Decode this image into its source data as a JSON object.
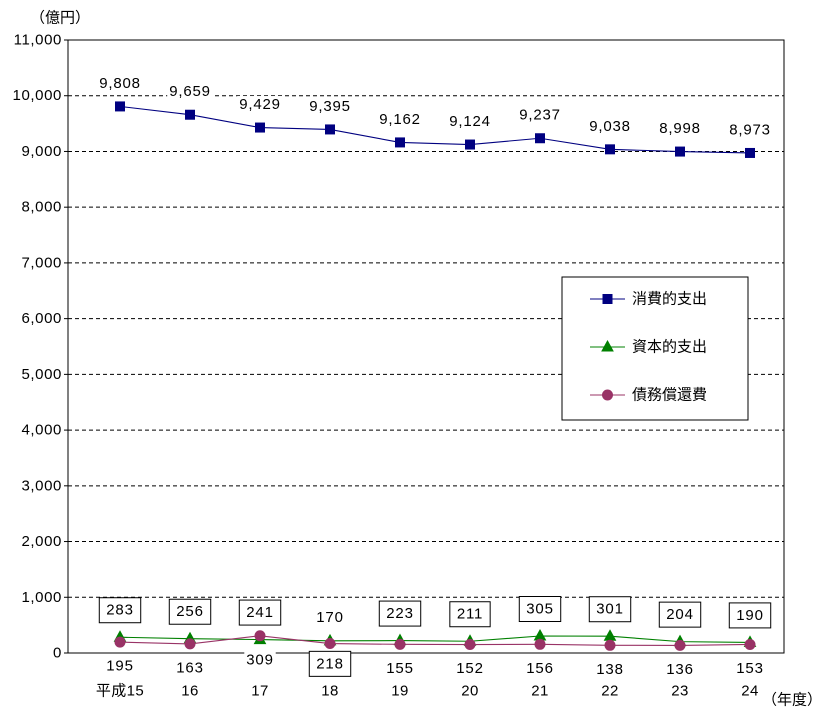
{
  "chart_data": {
    "type": "line",
    "ylabel": "（億円）",
    "xlabel": "（年度）",
    "categories": [
      "平成15",
      "16",
      "17",
      "18",
      "19",
      "20",
      "21",
      "22",
      "23",
      "24"
    ],
    "ylim": [
      0,
      11000
    ],
    "y_ticks": [
      0,
      1000,
      2000,
      3000,
      4000,
      5000,
      6000,
      7000,
      8000,
      9000,
      10000,
      11000
    ],
    "grid": true,
    "legend_position": "right",
    "series": [
      {
        "name": "消費的支出",
        "values": [
          9808,
          9659,
          9429,
          9395,
          9162,
          9124,
          9237,
          9038,
          8998,
          8973
        ],
        "color": "#000080",
        "marker": "square"
      },
      {
        "name": "資本的支出",
        "values": [
          283,
          256,
          241,
          218,
          223,
          211,
          305,
          301,
          204,
          190
        ],
        "color": "#008000",
        "marker": "triangle"
      },
      {
        "name": "債務償還費",
        "values": [
          195,
          163,
          309,
          170,
          155,
          152,
          156,
          138,
          136,
          153
        ],
        "color": "#993366",
        "marker": "circle"
      }
    ]
  }
}
